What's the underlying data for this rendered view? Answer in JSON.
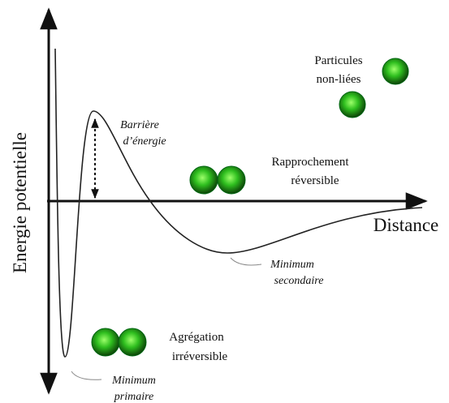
{
  "axes": {
    "y_label": "Energie potentielle",
    "x_label": "Distance"
  },
  "labels": {
    "barrier": [
      "Barrière",
      "d’énergie"
    ],
    "reversible": [
      "Rapprochement",
      "réversible"
    ],
    "unbound": [
      "Particules",
      "non-liées"
    ],
    "secondary_minimum": [
      "Minimum",
      "secondaire"
    ],
    "irreversible": [
      "Agrégation",
      "irréversible"
    ],
    "primary_minimum": [
      "Minimum",
      "primaire"
    ]
  }
}
